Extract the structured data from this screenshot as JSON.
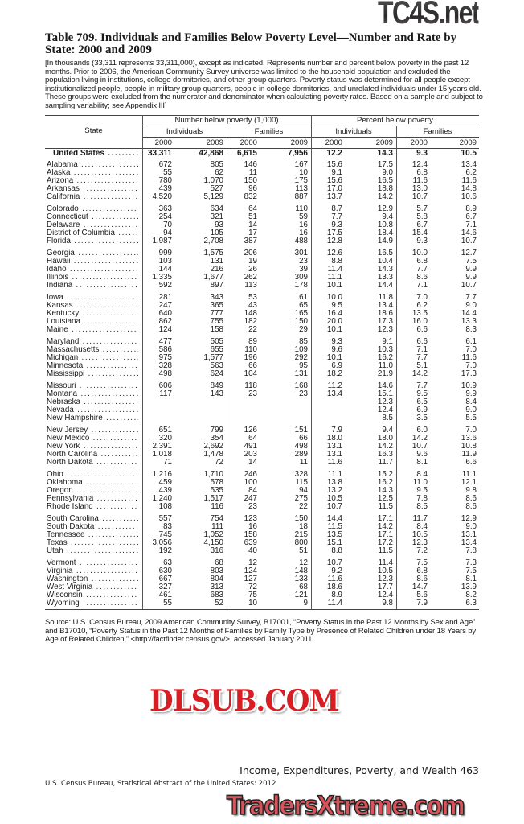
{
  "title": "Table 709. Individuals and Families Below Poverty Level—Number and Rate by State: 2000 and 2009",
  "note": "[In thousands (33,311 represents 33,311,000), except as indicated. Represents number and percent below poverty in the past 12 months. Prior to 2006, the American Community Survey universe was limited to the household population and excluded the population living in institutions, college dormitories, and other group quarters. Poverty status was determined for all people except institutionalized people, people in military group quarters, people in college dormitories, and unrelated individuals under 15 years old. These groups were excluded from the numerator and denominator when calculating poverty rates. Based on a sample and subject to sampling variability; see Appendix III]",
  "table": {
    "state_header": "State",
    "group_number": "Number below poverty (1,000)",
    "group_percent": "Percent below poverty",
    "sub_individuals": "Individuals",
    "sub_families": "Families",
    "year_a": "2000",
    "year_b": "2009",
    "total": [
      "United States",
      "33,311",
      "42,868",
      "6,615",
      "7,956",
      "12.2",
      "14.3",
      "9.3",
      "10.5"
    ],
    "groups": [
      [
        [
          "Alabama",
          "672",
          "805",
          "146",
          "167",
          "15.6",
          "17.5",
          "12.4",
          "13.4"
        ],
        [
          "Alaska",
          "55",
          "62",
          "11",
          "10",
          "9.1",
          "9.0",
          "6.8",
          "6.2"
        ],
        [
          "Arizona",
          "780",
          "1,070",
          "150",
          "175",
          "15.6",
          "16.5",
          "11.6",
          "11.6"
        ],
        [
          "Arkansas",
          "439",
          "527",
          "96",
          "113",
          "17.0",
          "18.8",
          "13.0",
          "14.8"
        ],
        [
          "California",
          "4,520",
          "5,129",
          "832",
          "887",
          "13.7",
          "14.2",
          "10.7",
          "10.6"
        ]
      ],
      [
        [
          "Colorado",
          "363",
          "634",
          "64",
          "110",
          "8.7",
          "12.9",
          "5.7",
          "8.9"
        ],
        [
          "Connecticut",
          "254",
          "321",
          "51",
          "59",
          "7.7",
          "9.4",
          "5.8",
          "6.7"
        ],
        [
          "Delaware",
          "70",
          "93",
          "14",
          "16",
          "9.3",
          "10.8",
          "6.7",
          "7.1"
        ],
        [
          "District of Columbia",
          "94",
          "105",
          "17",
          "16",
          "17.5",
          "18.4",
          "15.4",
          "14.6"
        ],
        [
          "Florida",
          "1,987",
          "2,708",
          "387",
          "488",
          "12.8",
          "14.9",
          "9.3",
          "10.7"
        ]
      ],
      [
        [
          "Georgia",
          "999",
          "1,575",
          "206",
          "301",
          "12.6",
          "16.5",
          "10.0",
          "12.7"
        ],
        [
          "Hawaii",
          "103",
          "131",
          "19",
          "23",
          "8.8",
          "10.4",
          "6.8",
          "7.5"
        ],
        [
          "Idaho",
          "144",
          "216",
          "26",
          "39",
          "11.4",
          "14.3",
          "7.7",
          "9.9"
        ],
        [
          "Illinois",
          "1,335",
          "1,677",
          "262",
          "309",
          "11.1",
          "13.3",
          "8.6",
          "9.9"
        ],
        [
          "Indiana",
          "592",
          "897",
          "113",
          "178",
          "10.1",
          "14.4",
          "7.1",
          "10.7"
        ]
      ],
      [
        [
          "Iowa",
          "281",
          "343",
          "53",
          "61",
          "10.0",
          "11.8",
          "7.0",
          "7.7"
        ],
        [
          "Kansas",
          "247",
          "365",
          "43",
          "65",
          "9.5",
          "13.4",
          "6.2",
          "9.0"
        ],
        [
          "Kentucky",
          "640",
          "777",
          "148",
          "165",
          "16.4",
          "18.6",
          "13.5",
          "14.4"
        ],
        [
          "Louisiana",
          "862",
          "755",
          "182",
          "150",
          "20.0",
          "17.3",
          "16.0",
          "13.3"
        ],
        [
          "Maine",
          "124",
          "158",
          "22",
          "29",
          "10.1",
          "12.3",
          "6.6",
          "8.3"
        ]
      ],
      [
        [
          "Maryland",
          "477",
          "505",
          "89",
          "85",
          "9.3",
          "9.1",
          "6.6",
          "6.1"
        ],
        [
          "Massachusetts",
          "586",
          "655",
          "110",
          "109",
          "9.6",
          "10.3",
          "7.1",
          "7.0"
        ],
        [
          "Michigan",
          "975",
          "1,577",
          "196",
          "292",
          "10.1",
          "16.2",
          "7.7",
          "11.6"
        ],
        [
          "Minnesota",
          "328",
          "563",
          "66",
          "95",
          "6.9",
          "11.0",
          "5.1",
          "7.0"
        ],
        [
          "Mississippi",
          "498",
          "624",
          "104",
          "131",
          "18.2",
          "21.9",
          "14.2",
          "17.3"
        ]
      ],
      [
        [
          "Missouri",
          "606",
          "849",
          "118",
          "168",
          "11.2",
          "14.6",
          "7.7",
          "10.9"
        ],
        [
          "Montana",
          "117",
          "143",
          "23",
          "23",
          "13.4",
          "15.1",
          "9.5",
          "9.9"
        ],
        [
          "Nebraska",
          "",
          "",
          "",
          "",
          "",
          "12.3",
          "6.5",
          "8.4"
        ],
        [
          "Nevada",
          "",
          "",
          "",
          "",
          "",
          "12.4",
          "6.9",
          "9.0"
        ],
        [
          "New Hampshire",
          "",
          "",
          "",
          "",
          "",
          "8.5",
          "3.5",
          "5.5"
        ]
      ],
      [
        [
          "New Jersey",
          "651",
          "799",
          "126",
          "151",
          "7.9",
          "9.4",
          "6.0",
          "7.0"
        ],
        [
          "New Mexico",
          "320",
          "354",
          "64",
          "66",
          "18.0",
          "18.0",
          "14.2",
          "13.6"
        ],
        [
          "New York",
          "2,391",
          "2,692",
          "491",
          "498",
          "13.1",
          "14.2",
          "10.7",
          "10.8"
        ],
        [
          "North Carolina",
          "1,018",
          "1,478",
          "203",
          "289",
          "13.1",
          "16.3",
          "9.6",
          "11.9"
        ],
        [
          "North Dakota",
          "71",
          "72",
          "14",
          "11",
          "11.6",
          "11.7",
          "8.1",
          "6.6"
        ]
      ],
      [
        [
          "Ohio",
          "1,216",
          "1,710",
          "246",
          "328",
          "11.1",
          "15.2",
          "8.4",
          "11.1"
        ],
        [
          "Oklahoma",
          "459",
          "578",
          "100",
          "115",
          "13.8",
          "16.2",
          "11.0",
          "12.1"
        ],
        [
          "Oregon",
          "439",
          "535",
          "84",
          "94",
          "13.2",
          "14.3",
          "9.5",
          "9.8"
        ],
        [
          "Pennsylvania",
          "1,240",
          "1,517",
          "247",
          "275",
          "10.5",
          "12.5",
          "7.8",
          "8.6"
        ],
        [
          "Rhode Island",
          "108",
          "116",
          "23",
          "22",
          "10.7",
          "11.5",
          "8.5",
          "8.6"
        ]
      ],
      [
        [
          "South Carolina",
          "557",
          "754",
          "123",
          "150",
          "14.4",
          "17.1",
          "11.7",
          "12.9"
        ],
        [
          "South Dakota",
          "83",
          "111",
          "16",
          "18",
          "11.5",
          "14.2",
          "8.4",
          "9.0"
        ],
        [
          "Tennessee",
          "745",
          "1,052",
          "158",
          "215",
          "13.5",
          "17.1",
          "10.5",
          "13.1"
        ],
        [
          "Texas",
          "3,056",
          "4,150",
          "639",
          "800",
          "15.1",
          "17.2",
          "12.3",
          "13.4"
        ],
        [
          "Utah",
          "192",
          "316",
          "40",
          "51",
          "8.8",
          "11.5",
          "7.2",
          "7.8"
        ]
      ],
      [
        [
          "Vermont",
          "63",
          "68",
          "12",
          "12",
          "10.7",
          "11.4",
          "7.5",
          "7.3"
        ],
        [
          "Virginia",
          "630",
          "803",
          "124",
          "148",
          "9.2",
          "10.5",
          "6.8",
          "7.5"
        ],
        [
          "Washington",
          "667",
          "804",
          "127",
          "133",
          "11.6",
          "12.3",
          "8.6",
          "8.1"
        ],
        [
          "West Virginia",
          "327",
          "313",
          "72",
          "68",
          "18.6",
          "17.7",
          "14.7",
          "13.9"
        ],
        [
          "Wisconsin",
          "461",
          "683",
          "75",
          "121",
          "8.9",
          "12.4",
          "5.6",
          "8.2"
        ],
        [
          "Wyoming",
          "55",
          "52",
          "10",
          "9",
          "11.4",
          "9.8",
          "7.9",
          "6.3"
        ]
      ]
    ]
  },
  "source": "Source: U.S. Census Bureau, 2009 American Community Survey, B17001, “Poverty Status in the Past 12 Months by Sex and Age” and B17010, “Poverty Status in the Past 12 Months of Families by Family Type by Presence of Related Children under 18 Years by Age of Related Children,” <http://factfinder.census.gov/>, accessed January 2011.",
  "footer": {
    "chapter": "Income, Expenditures, Poverty, and Wealth  463",
    "publication": "U.S. Census Bureau, Statistical Abstract of the United States: 2012"
  },
  "watermarks": {
    "top": "TC4S.net",
    "middle": "DLSUB.COM",
    "bottom": "TradersXtreme.com"
  }
}
